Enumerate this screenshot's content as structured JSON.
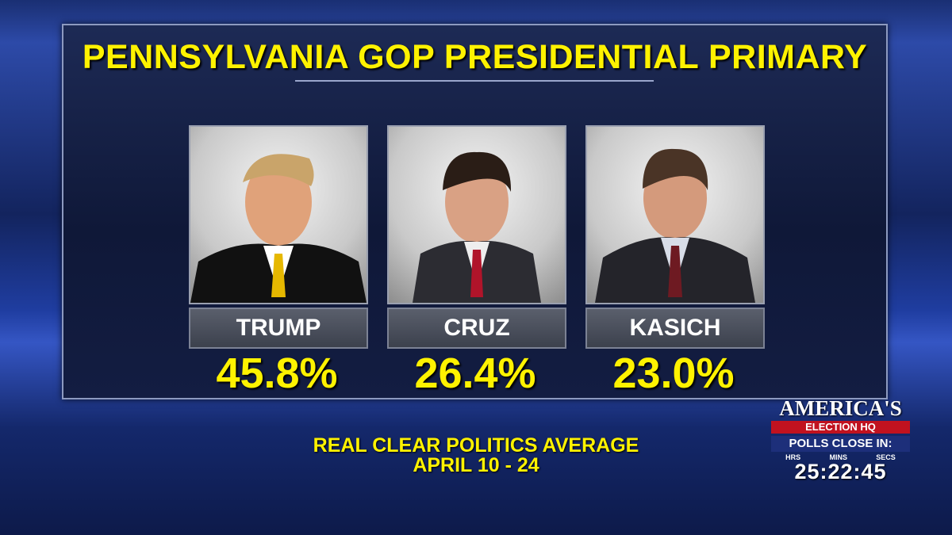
{
  "title": "PENNSYLVANIA GOP PRESIDENTIAL PRIMARY",
  "candidates": [
    {
      "name": "TRUMP",
      "value": "45.8%"
    },
    {
      "name": "CRUZ",
      "value": "26.4%"
    },
    {
      "name": "KASICH",
      "value": "23.0%"
    }
  ],
  "source": "REAL CLEAR POLITICS AVERAGE",
  "dates": "APRIL 10 - 24",
  "logo": {
    "brand": "AMERICA'S",
    "subtitle": "ELECTION HQ",
    "countdown_label": "POLLS CLOSE IN:",
    "units": [
      "HRS",
      "MINS",
      "SECS"
    ],
    "countdown": "25:22:45"
  }
}
